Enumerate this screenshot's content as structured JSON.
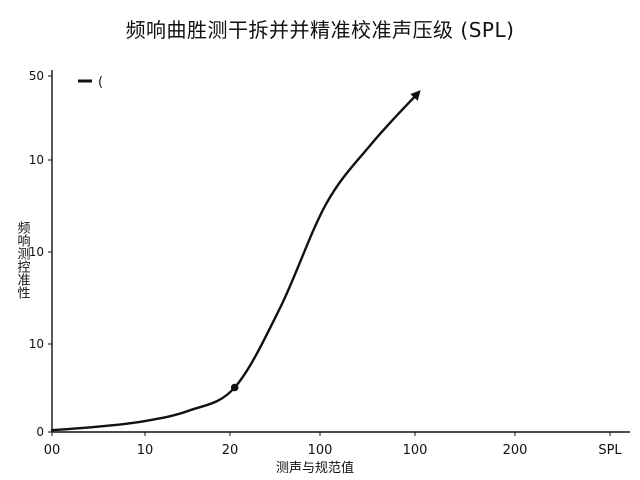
{
  "chart_data": {
    "type": "line",
    "title": "频响曲胜测干拆并并精准校准声压级 (SPL)",
    "xlabel": "测声与规范值",
    "ylabel": "频响测控准性",
    "x_ticks": [
      "00",
      "10",
      "20",
      "100",
      "100",
      "200",
      "SPL"
    ],
    "y_ticks": [
      "0",
      "10",
      "10",
      "10",
      "50"
    ],
    "legend": {
      "label": "(",
      "position": "top-left"
    },
    "series": [
      {
        "x": [
          0,
          0.5,
          1,
          1.5,
          2,
          2.5,
          3,
          3.5,
          4
        ],
        "y": [
          1,
          3,
          6,
          12,
          25,
          70,
          128,
          162,
          190
        ]
      }
    ],
    "marked_point": {
      "x": 2,
      "y": 25
    },
    "ylim": [
      0,
      200
    ],
    "xlim": [
      0,
      6
    ],
    "grid": false,
    "line_color": "#111111"
  }
}
